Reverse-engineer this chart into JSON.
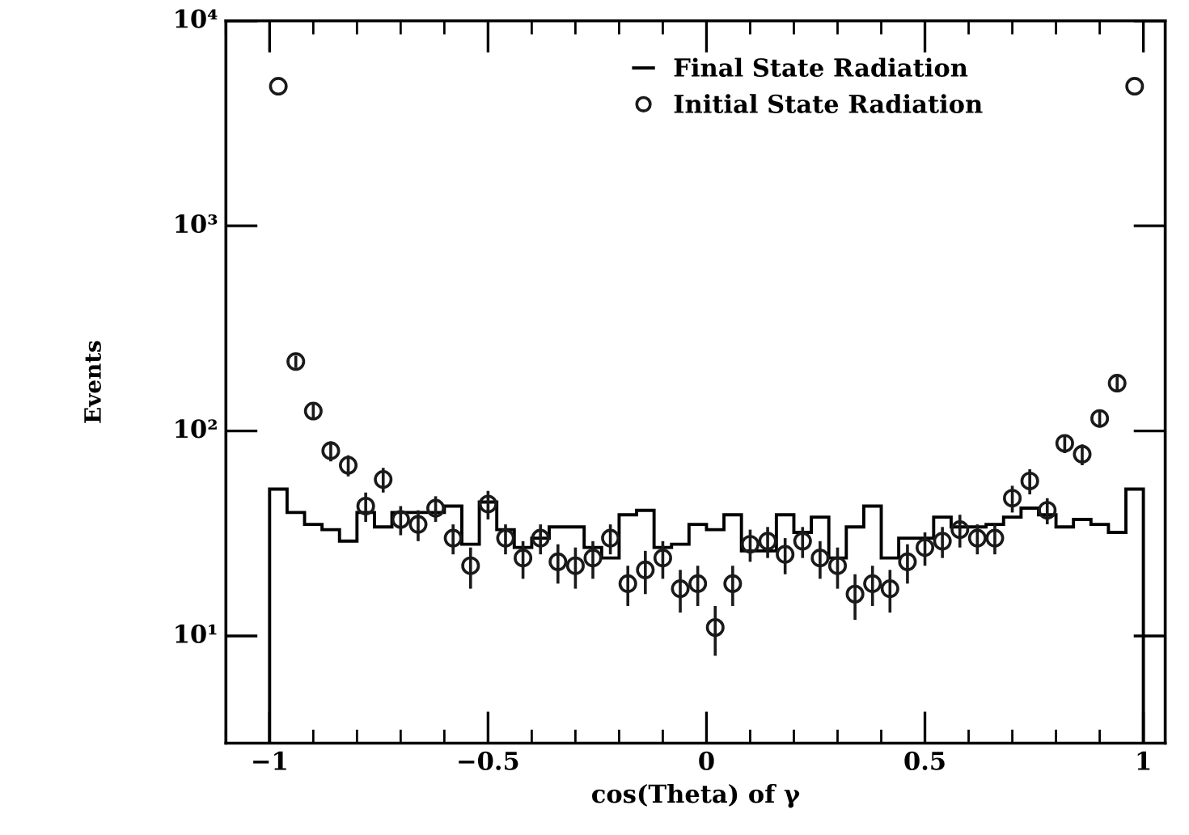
{
  "chart_data": {
    "type": "histogram",
    "xlabel": "cos(Theta) of γ",
    "ylabel": "Events",
    "bins": [
      -1.0,
      -0.96,
      -0.92,
      -0.88,
      -0.84,
      -0.8,
      -0.76,
      -0.72,
      -0.68,
      -0.64,
      -0.6,
      -0.56,
      -0.52,
      -0.48,
      -0.44,
      -0.4,
      -0.36,
      -0.32,
      -0.28,
      -0.24,
      -0.2,
      -0.16,
      -0.12,
      -0.08,
      -0.04,
      0.0,
      0.04,
      0.08,
      0.12,
      0.16,
      0.2,
      0.24,
      0.28,
      0.32,
      0.36,
      0.4,
      0.44,
      0.48,
      0.52,
      0.56,
      0.6,
      0.64,
      0.68,
      0.72,
      0.76,
      0.8,
      0.84,
      0.88,
      0.92,
      0.96,
      1.0
    ],
    "series": [
      {
        "name": "Final State Radiation",
        "color": "#000000",
        "values": [
          52,
          40,
          35,
          33,
          29,
          40,
          34,
          40,
          40,
          40,
          43,
          28,
          45,
          33,
          27,
          30,
          34,
          34,
          27,
          24,
          39,
          41,
          27,
          28,
          35,
          33,
          39,
          26,
          26,
          39,
          32,
          38,
          24,
          34,
          43,
          24,
          30,
          30,
          38,
          34,
          34,
          35,
          38,
          42,
          39,
          34,
          37,
          35,
          32,
          52
        ]
      },
      {
        "name": "Initial State Radiation",
        "type": "scatter",
        "color": "#1a1a1a",
        "marker": "circle",
        "x": [
          -0.98,
          -0.94,
          -0.9,
          -0.86,
          -0.82,
          -0.78,
          -0.74,
          -0.7,
          -0.66,
          -0.62,
          -0.58,
          -0.54,
          -0.5,
          -0.46,
          -0.42,
          -0.38,
          -0.34,
          -0.3,
          -0.26,
          -0.22,
          -0.18,
          -0.14,
          -0.1,
          -0.06,
          -0.02,
          0.02,
          0.06,
          0.1,
          0.14,
          0.18,
          0.22,
          0.26,
          0.3,
          0.34,
          0.38,
          0.42,
          0.46,
          0.5,
          0.54,
          0.58,
          0.62,
          0.66,
          0.7,
          0.74,
          0.78,
          0.82,
          0.86,
          0.9,
          0.94,
          0.98
        ],
        "values": [
          4800,
          218,
          125,
          80,
          68,
          43,
          58,
          37,
          35,
          42,
          30,
          22,
          44,
          30,
          24,
          30,
          23,
          22,
          24,
          30,
          18,
          21,
          24,
          17,
          18,
          11,
          18,
          28,
          29,
          25,
          29,
          24,
          22,
          16,
          18,
          17,
          23,
          27,
          29,
          33,
          30,
          30,
          47,
          57,
          41,
          87,
          77,
          115,
          171,
          4800
        ],
        "errors": [
          null,
          15,
          11,
          9,
          8,
          7,
          8,
          6,
          6,
          6,
          5,
          5,
          7,
          5,
          5,
          5,
          5,
          5,
          5,
          5,
          4,
          5,
          5,
          4,
          4,
          3,
          4,
          5,
          5,
          5,
          5,
          5,
          5,
          4,
          4,
          4,
          5,
          5,
          5,
          6,
          5,
          5,
          7,
          8,
          6,
          9,
          9,
          11,
          13,
          null
        ]
      }
    ],
    "xlim": [
      -1.1,
      1.05
    ],
    "xticks": [
      {
        "value": -1,
        "label": "−1"
      },
      {
        "value": -0.5,
        "label": "−0.5"
      },
      0,
      0.5,
      1
    ],
    "log": true,
    "ylim": [
      3,
      10000
    ],
    "yticks": [
      {
        "value": 10,
        "label": "10¹"
      },
      {
        "value": 100,
        "label": "10²"
      },
      {
        "value": 1000,
        "label": "10³"
      },
      {
        "value": 10000,
        "label": "10⁴"
      }
    ],
    "legend": "top",
    "grid": false
  }
}
